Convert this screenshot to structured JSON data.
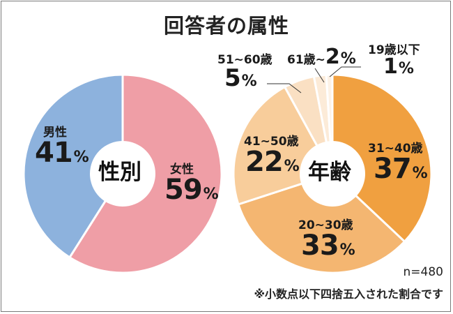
{
  "title": "回答者の属性",
  "chart_data": [
    {
      "type": "pie",
      "center_label": "性別",
      "categories": [
        "女性",
        "男性"
      ],
      "values": [
        59,
        41
      ],
      "colors": [
        "#ef9ea6",
        "#8db2dd"
      ],
      "unit": "%"
    },
    {
      "type": "pie",
      "center_label": "年齢",
      "categories": [
        "31~40歳",
        "20~30歳",
        "41~50歳",
        "51~60歳",
        "61歳~",
        "19歳以下"
      ],
      "values": [
        37,
        33,
        22,
        5,
        2,
        1
      ],
      "colors": [
        "#f0a040",
        "#f4b671",
        "#f8cd9b",
        "#fae0c3",
        "#fcebd8",
        "#fdf2e6"
      ],
      "unit": "%"
    }
  ],
  "footer": {
    "n": "n=480",
    "note": "※小数点以下四捨五入された割合です"
  }
}
